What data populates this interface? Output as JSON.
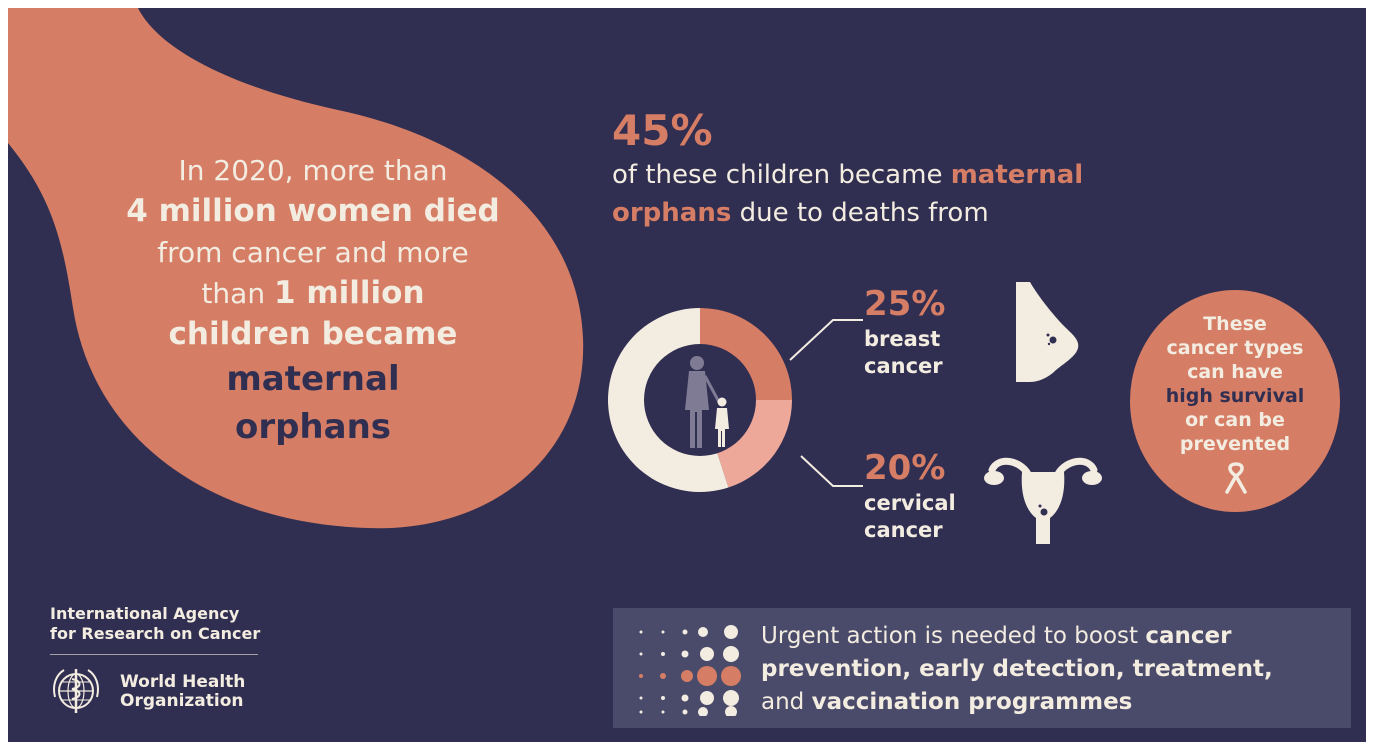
{
  "headline": {
    "line1": "In 2020, more than",
    "line2": "4 million women died",
    "line3": "from cancer and more",
    "line4_pre": "than ",
    "line4_bold": "1 million",
    "line5": "children became",
    "line6": "maternal",
    "line7": "orphans"
  },
  "lead": {
    "percent": "45%",
    "text_a": "of these children became ",
    "highlight_a": "maternal",
    "highlight_b": "orphans",
    "text_b": " due to deaths from"
  },
  "stats": [
    {
      "percent": "25%",
      "label_1": "breast",
      "label_2": "cancer"
    },
    {
      "percent": "20%",
      "label_1": "cervical",
      "label_2": "cancer"
    }
  ],
  "chart_data": {
    "type": "pie",
    "donut": true,
    "slices": [
      {
        "label": "breast cancer",
        "value": 25,
        "color": "#d67d65"
      },
      {
        "label": "cervical cancer",
        "value": 20,
        "color": "#eea89a"
      },
      {
        "label": "other",
        "value": 55,
        "color": "#f3ece1"
      }
    ]
  },
  "badge": {
    "line1": "These",
    "line2": "cancer types",
    "line3": "can have",
    "line4": "high survival",
    "line5": "or can be",
    "line6": "prevented"
  },
  "org": {
    "iarc_1": "International Agency",
    "iarc_2": "for Research on Cancer",
    "who_1": "World Health",
    "who_2": "Organization"
  },
  "action": {
    "t1": "Urgent action is needed to boost ",
    "b1": "cancer",
    "b2": "prevention, early detection, treatment,",
    "t2": "and ",
    "b3": "vaccination programmes"
  },
  "colors": {
    "background": "#312f51",
    "accent": "#d67d65",
    "accent_light": "#eea89a",
    "cream": "#f3ece1",
    "panel": "#4a4a6a"
  },
  "icons": [
    "woman-child-icon",
    "breast-icon",
    "uterus-icon",
    "awareness-ribbon-icon",
    "who-emblem-icon",
    "dot-grid-icon"
  ]
}
